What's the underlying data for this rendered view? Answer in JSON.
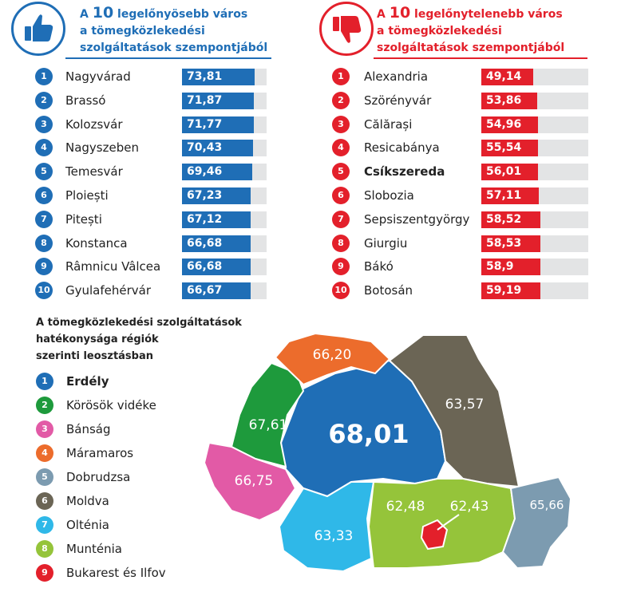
{
  "left_panel": {
    "title_prefix": "A",
    "title_number": "10",
    "title_rest1": " legelőnyösebb város",
    "title_line2": "a tömegközlekedési",
    "title_line3": "szolgáltatások szempontjából",
    "accent": "#1f6eb6",
    "icon": "thumbs-up-icon"
  },
  "right_panel": {
    "title_prefix": "A",
    "title_number": "10",
    "title_rest1": " legelőnytelenebb város",
    "title_line2": "a tömegközlekedési",
    "title_line3": "szolgáltatások szempontjából",
    "accent": "#e3202b",
    "icon": "thumbs-down-icon"
  },
  "map_title_lines": [
    "A tömegközlekedési szolgáltatások",
    "hatékonysága régiók",
    "szerinti leosztásban"
  ],
  "chart_data": [
    {
      "type": "bar",
      "orientation": "horizontal",
      "ranks": [
        "1",
        "2",
        "3",
        "4",
        "5",
        "6",
        "7",
        "8",
        "9",
        "10"
      ],
      "categories": [
        "Nagyvárad",
        "Brassó",
        "Kolozsvár",
        "Nagyszeben",
        "Temesvár",
        "Ploiești",
        "Pitești",
        "Konstanca",
        "Râmnicu Vâlcea",
        "Gyulafehérvár"
      ],
      "values": [
        73.81,
        71.87,
        71.77,
        70.43,
        69.46,
        67.23,
        67.12,
        66.68,
        66.68,
        66.67
      ],
      "labels": [
        "73,81",
        "71,87",
        "71,77",
        "70,43",
        "69,46",
        "67,23",
        "67,12",
        "66,68",
        "66,68",
        "66,67"
      ],
      "color": "#1f6eb6"
    },
    {
      "type": "bar",
      "orientation": "horizontal",
      "ranks": [
        "1",
        "2",
        "3",
        "4",
        "5",
        "6",
        "7",
        "8",
        "9",
        "10"
      ],
      "categories": [
        "Alexandria",
        "Szörényvár",
        "Călărași",
        "Resicabánya",
        "Csíkszereda",
        "Slobozia",
        "Sepsiszentgyörgy",
        "Giurgiu",
        "Bákó",
        "Botosán"
      ],
      "values": [
        49.14,
        53.86,
        54.96,
        55.54,
        56.01,
        57.11,
        58.52,
        58.53,
        58.9,
        59.19
      ],
      "labels": [
        "49,14",
        "53,86",
        "54,96",
        "55,54",
        "56,01",
        "57,11",
        "58,52",
        "58,53",
        "58,9",
        "59,19"
      ],
      "bold_category": "Csíkszereda",
      "color": "#e3202b"
    },
    {
      "type": "choropleth",
      "regions": [
        {
          "rank": "1",
          "name": "Erdély",
          "value": "68,01",
          "color": "#1f6eb6"
        },
        {
          "rank": "2",
          "name": "Körösök vidéke",
          "value": "67,61",
          "color": "#1e9a3c"
        },
        {
          "rank": "3",
          "name": "Bánság",
          "value": "66,75",
          "color": "#e25aa6"
        },
        {
          "rank": "4",
          "name": "Máramaros",
          "value": "66,20",
          "color": "#ec6c2c"
        },
        {
          "rank": "5",
          "name": "Dobrudzsa",
          "value": "65,66",
          "color": "#7c9bb0"
        },
        {
          "rank": "6",
          "name": "Moldva",
          "value": "63,57",
          "color": "#6b6555"
        },
        {
          "rank": "7",
          "name": "Olténia",
          "value": "63,33",
          "color": "#2fb8e8"
        },
        {
          "rank": "8",
          "name": "Munténia",
          "value": "62,48",
          "color": "#95c43a"
        },
        {
          "rank": "9",
          "name": "Bukarest és Ilfov",
          "value": "62,43",
          "color": "#e3202b"
        }
      ]
    }
  ]
}
